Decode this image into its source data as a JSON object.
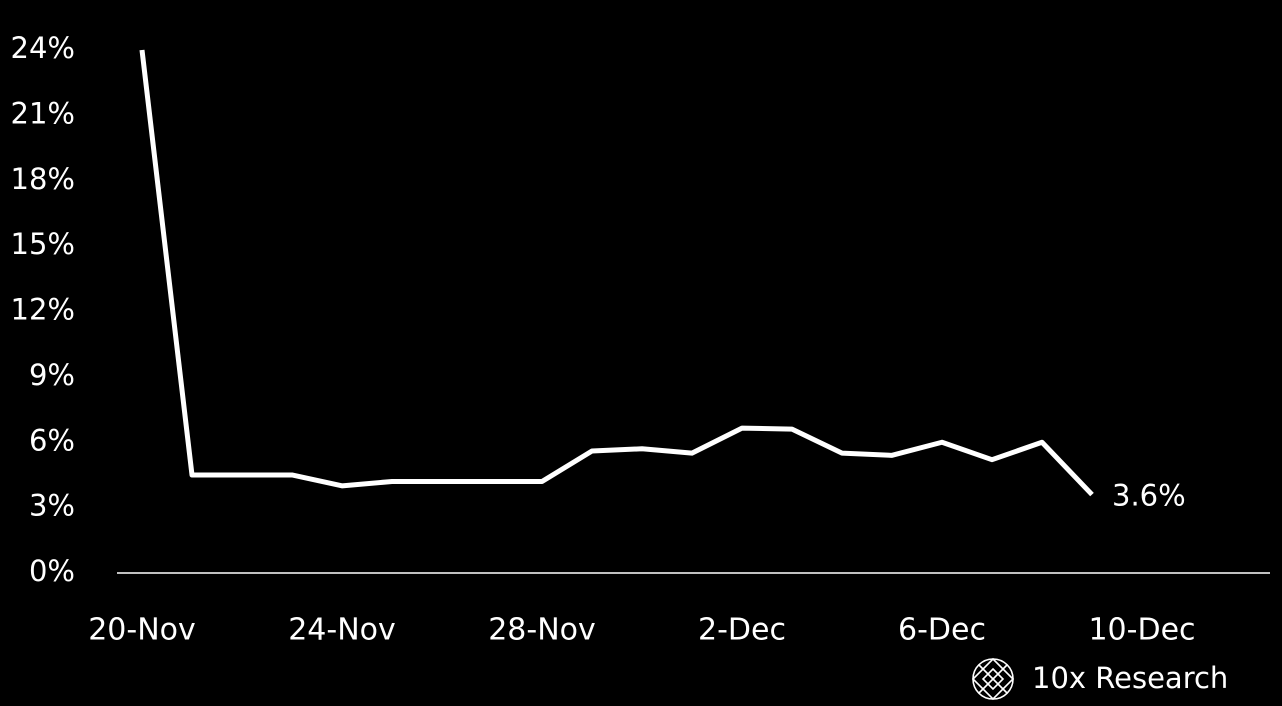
{
  "chart_data": {
    "type": "line",
    "categories": [
      "20-Nov",
      null,
      null,
      null,
      "24-Nov",
      null,
      null,
      null,
      "28-Nov",
      null,
      null,
      null,
      "2-Dec",
      null,
      null,
      null,
      "6-Dec",
      null,
      null,
      null,
      "10-Dec"
    ],
    "series": [
      {
        "color": "#ffffff",
        "values": [
          24,
          4.5,
          4.5,
          4.5,
          4.0,
          4.2,
          4.2,
          4.2,
          4.2,
          5.6,
          5.7,
          5.5,
          6.65,
          6.6,
          5.5,
          5.4,
          6.0,
          5.2,
          6.0,
          3.6,
          null
        ],
        "value_labels": [
          null,
          null,
          null,
          null,
          null,
          null,
          null,
          null,
          null,
          null,
          null,
          null,
          null,
          null,
          null,
          null,
          null,
          null,
          null,
          "3.6%",
          null
        ]
      }
    ],
    "ylim": [
      0,
      24
    ],
    "yticks": [
      {
        "value": 0,
        "label": "0%"
      },
      {
        "value": 3,
        "label": "3%"
      },
      {
        "value": 6,
        "label": "6%"
      },
      {
        "value": 9,
        "label": "9%"
      },
      {
        "value": 12,
        "label": "12%"
      },
      {
        "value": 15,
        "label": "15%"
      },
      {
        "value": 18,
        "label": "18%"
      },
      {
        "value": 21,
        "label": "21%"
      },
      {
        "value": 24,
        "label": "24%"
      }
    ],
    "grid": false,
    "watermark": "10x Research"
  }
}
